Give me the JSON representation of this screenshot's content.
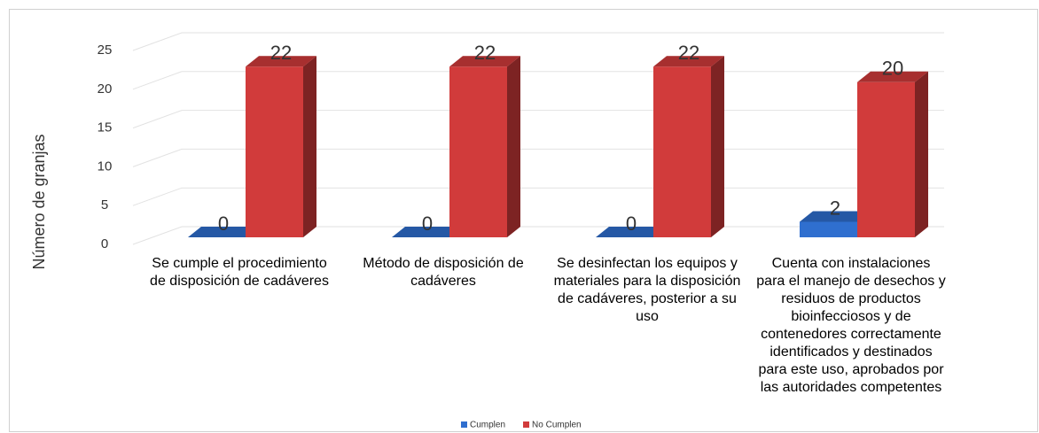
{
  "chart_data": {
    "type": "bar",
    "y_label": "Número de granjas",
    "categories": [
      "Se cumple el procedimiento de disposición de cadáveres",
      "Método de disposición de cadáveres",
      "Se desinfectan los equipos y materiales para la disposición de cadáveres, posterior a su uso",
      "Cuenta con instalaciones para el manejo de desechos y residuos de productos bioinfecciosos y de contenedores correctamente identificados y destinados para este uso, aprobados por las autoridades competentes"
    ],
    "series": [
      {
        "name": "Cumplen",
        "color": "#2f6fcf",
        "values": [
          0,
          0,
          0,
          2
        ]
      },
      {
        "name": "No Cumplen",
        "color": "#d13b3b",
        "values": [
          22,
          22,
          22,
          20
        ]
      }
    ],
    "ylim": [
      0,
      25
    ],
    "yticks": [
      0,
      5,
      10,
      15,
      20,
      25
    ],
    "grid": true,
    "legend": "bottom"
  }
}
